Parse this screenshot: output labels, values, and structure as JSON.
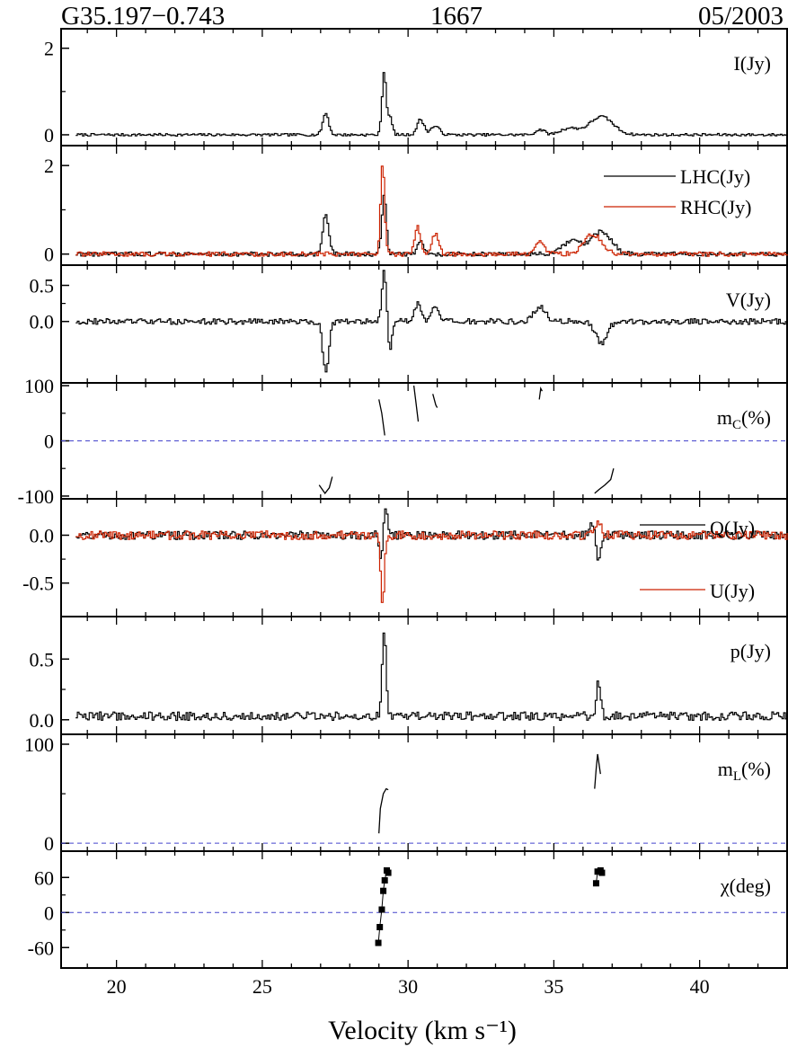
{
  "header": {
    "source": "G35.197−0.743",
    "frequency": "1667",
    "epoch": "05/2003"
  },
  "chart_data": {
    "type": "line",
    "title": "",
    "xlabel": "Velocity (km s⁻¹)",
    "xlim": [
      18.1,
      43.0
    ],
    "xticks": [
      20,
      25,
      30,
      35,
      40
    ],
    "x_tick_labels": [
      "20",
      "25",
      "30",
      "35",
      "40"
    ],
    "panels": [
      {
        "id": "I",
        "label": "I(Jy)",
        "ylim": [
          -0.25,
          2.45
        ],
        "yticks": [
          0,
          2
        ],
        "ytick_labels": [
          "0",
          "2"
        ],
        "series": [
          {
            "color": "#000000",
            "baseline": 0.0,
            "noise": 0.03,
            "features": [
              {
                "x": 27.15,
                "amp": 0.5,
                "width": 0.1
              },
              {
                "x": 29.15,
                "amp": 1.45,
                "width": 0.07
              },
              {
                "x": 29.35,
                "amp": 0.4,
                "width": 0.08
              },
              {
                "x": 30.4,
                "amp": 0.35,
                "width": 0.12
              },
              {
                "x": 30.9,
                "amp": 0.2,
                "width": 0.15
              },
              {
                "x": 34.5,
                "amp": 0.12,
                "width": 0.15
              },
              {
                "x": 35.5,
                "amp": 0.15,
                "width": 0.3
              },
              {
                "x": 36.6,
                "amp": 0.42,
                "width": 0.4
              }
            ]
          }
        ]
      },
      {
        "id": "LR",
        "label": "",
        "ylim": [
          -0.25,
          2.45
        ],
        "yticks": [
          0,
          2
        ],
        "ytick_labels": [
          "0",
          "2"
        ],
        "legend": [
          {
            "name": "LHC(Jy)",
            "color": "#000000"
          },
          {
            "name": "RHC(Jy)",
            "color": "#cc2200"
          }
        ],
        "series": [
          {
            "name": "LHC(Jy)",
            "color": "#000000",
            "baseline": 0.0,
            "noise": 0.05,
            "features": [
              {
                "x": 27.15,
                "amp": 0.9,
                "width": 0.1
              },
              {
                "x": 29.15,
                "amp": 1.3,
                "width": 0.08
              },
              {
                "x": 30.4,
                "amp": 0.3,
                "width": 0.1
              },
              {
                "x": 35.6,
                "amp": 0.3,
                "width": 0.3
              },
              {
                "x": 36.6,
                "amp": 0.5,
                "width": 0.35
              }
            ]
          },
          {
            "name": "RHC(Jy)",
            "color": "#cc2200",
            "baseline": 0.0,
            "noise": 0.05,
            "features": [
              {
                "x": 29.1,
                "amp": 2.0,
                "width": 0.07
              },
              {
                "x": 30.3,
                "amp": 0.6,
                "width": 0.1
              },
              {
                "x": 30.9,
                "amp": 0.45,
                "width": 0.12
              },
              {
                "x": 34.5,
                "amp": 0.3,
                "width": 0.15
              },
              {
                "x": 36.3,
                "amp": 0.45,
                "width": 0.3
              }
            ]
          }
        ]
      },
      {
        "id": "V",
        "label": "V(Jy)",
        "ylim": [
          -0.85,
          0.78
        ],
        "yticks": [
          0.0,
          0.5
        ],
        "ytick_labels": [
          "0.0",
          "0.5"
        ],
        "series": [
          {
            "color": "#000000",
            "baseline": 0.0,
            "noise": 0.04,
            "features": [
              {
                "x": 27.15,
                "amp": -0.7,
                "width": 0.1
              },
              {
                "x": 29.15,
                "amp": 0.72,
                "width": 0.07
              },
              {
                "x": 29.35,
                "amp": -0.4,
                "width": 0.06
              },
              {
                "x": 30.3,
                "amp": 0.25,
                "width": 0.1
              },
              {
                "x": 30.9,
                "amp": 0.2,
                "width": 0.12
              },
              {
                "x": 34.5,
                "amp": 0.2,
                "width": 0.2
              },
              {
                "x": 36.6,
                "amp": -0.3,
                "width": 0.2
              }
            ]
          }
        ]
      },
      {
        "id": "mc",
        "label": "m_C(%)",
        "label_main": "m",
        "label_sub": "C",
        "label_rest": "(%)",
        "ylim": [
          -105,
          105
        ],
        "yticks": [
          -100,
          0,
          100
        ],
        "ytick_labels": [
          "-100",
          "0",
          "100"
        ],
        "reference_line": 0,
        "segments": [
          {
            "x": [
              29.0,
              29.1,
              29.2
            ],
            "y": [
              75,
              50,
              10
            ]
          },
          {
            "x": [
              30.2,
              30.27,
              30.35
            ],
            "y": [
              100,
              70,
              35
            ]
          },
          {
            "x": [
              30.85,
              30.95,
              31.0
            ],
            "y": [
              85,
              65,
              60
            ]
          },
          {
            "x": [
              34.5,
              34.55,
              34.6
            ],
            "y": [
              75,
              95,
              90
            ]
          },
          {
            "x": [
              26.95,
              27.15,
              27.3,
              27.4
            ],
            "y": [
              -80,
              -95,
              -85,
              -65
            ]
          },
          {
            "x": [
              36.4,
              36.55,
              36.75,
              36.95,
              37.05
            ],
            "y": [
              -95,
              -88,
              -80,
              -70,
              -50
            ]
          }
        ]
      },
      {
        "id": "QU",
        "label": "",
        "ylim": [
          -0.85,
          0.38
        ],
        "yticks": [
          -0.5,
          0.0
        ],
        "ytick_labels": [
          "-0.5",
          "0.0"
        ],
        "legend": [
          {
            "name": "Q(Jy)",
            "color": "#000000"
          },
          {
            "name": "U(Jy)",
            "color": "#cc2200"
          }
        ],
        "series": [
          {
            "name": "Q(Jy)",
            "color": "#000000",
            "baseline": 0.0,
            "noise": 0.045,
            "features": [
              {
                "x": 29.05,
                "amp": -0.3,
                "width": 0.05
              },
              {
                "x": 29.2,
                "amp": 0.3,
                "width": 0.06
              },
              {
                "x": 36.5,
                "amp": -0.3,
                "width": 0.08
              },
              {
                "x": 36.3,
                "amp": 0.15,
                "width": 0.08
              }
            ]
          },
          {
            "name": "U(Jy)",
            "color": "#cc2200",
            "baseline": 0.0,
            "noise": 0.045,
            "features": [
              {
                "x": 29.1,
                "amp": -0.75,
                "width": 0.06
              },
              {
                "x": 36.5,
                "amp": 0.15,
                "width": 0.1
              }
            ]
          }
        ]
      },
      {
        "id": "p",
        "label": "p(Jy)",
        "ylim": [
          -0.12,
          0.85
        ],
        "yticks": [
          0.0,
          0.5
        ],
        "ytick_labels": [
          "0.0",
          "0.5"
        ],
        "series": [
          {
            "color": "#000000",
            "baseline": 0.03,
            "noise": 0.035,
            "features": [
              {
                "x": 29.15,
                "amp": 0.72,
                "width": 0.07
              },
              {
                "x": 36.5,
                "amp": 0.3,
                "width": 0.07
              }
            ]
          }
        ]
      },
      {
        "id": "ml",
        "label": "m_L(%)",
        "label_main": "m",
        "label_sub": "L",
        "label_rest": "(%)",
        "ylim": [
          -8,
          110
        ],
        "yticks": [
          0,
          100
        ],
        "ytick_labels": [
          "0",
          "100"
        ],
        "reference_line": 0,
        "segments": [
          {
            "x": [
              29.0,
              29.05,
              29.15,
              29.25,
              29.32
            ],
            "y": [
              10,
              35,
              50,
              55,
              54
            ]
          },
          {
            "x": [
              36.4,
              36.45,
              36.5,
              36.55,
              36.6
            ],
            "y": [
              55,
              75,
              90,
              80,
              70
            ]
          }
        ]
      },
      {
        "id": "chi",
        "label": "χ(deg)",
        "ylim": [
          -95,
          105
        ],
        "yticks": [
          -60,
          0,
          60
        ],
        "ytick_labels": [
          "-60",
          "0",
          "60"
        ],
        "reference_line": 0,
        "points": {
          "x": [
            28.98,
            29.03,
            29.1,
            29.15,
            29.2,
            29.27,
            29.32
          ],
          "y": [
            -52,
            -25,
            5,
            37,
            55,
            72,
            68
          ]
        },
        "points2": {
          "x": [
            36.45,
            36.5,
            36.6,
            36.65
          ],
          "y": [
            50,
            70,
            72,
            68
          ]
        }
      }
    ]
  }
}
